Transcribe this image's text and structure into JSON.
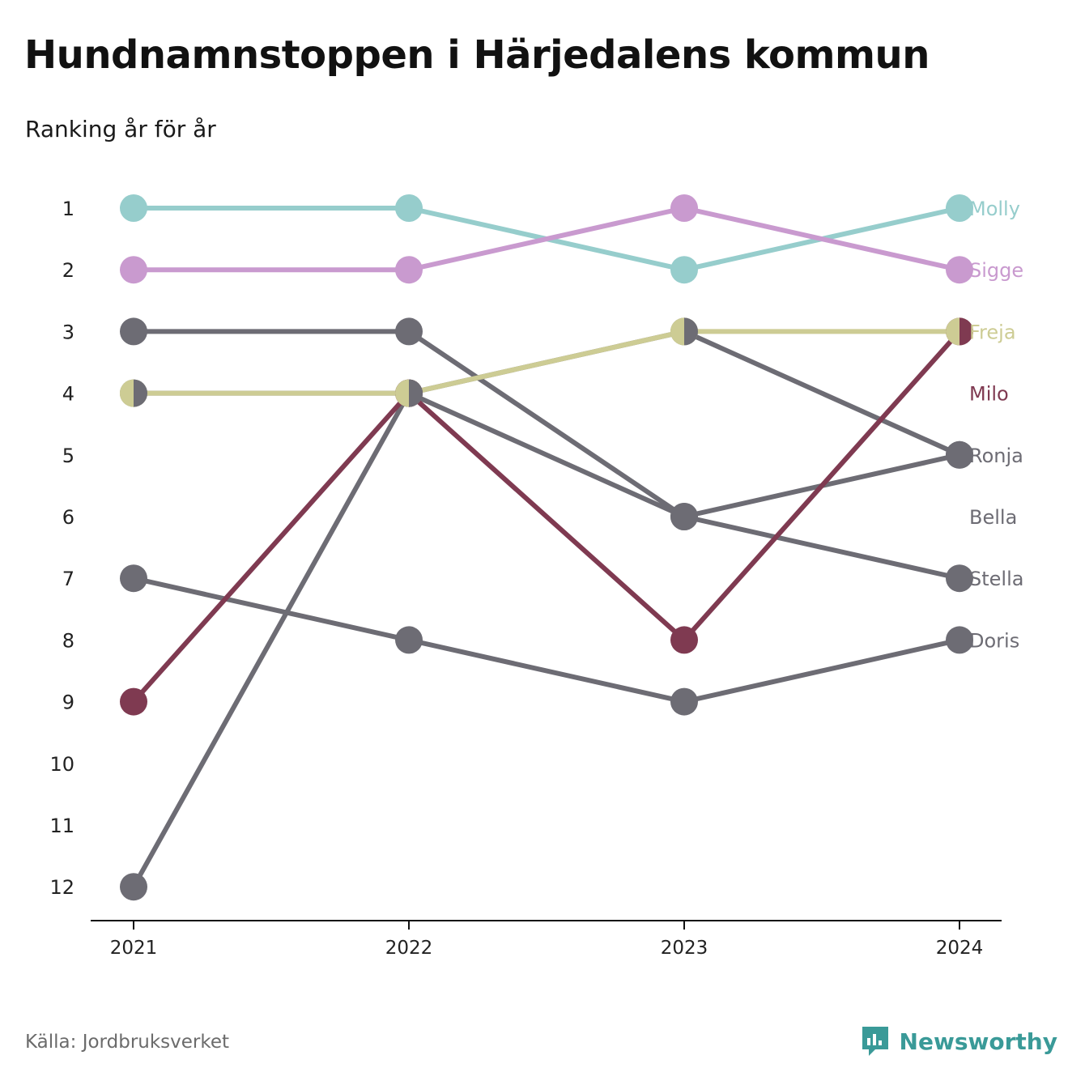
{
  "title": "Hundnamnstoppen i Härjedalens kommun",
  "subtitle": "Ranking år för år",
  "source": "Källa: Jordbruksverket",
  "brand": {
    "name": "Newsworthy",
    "icon": "newsworthy-logo-icon",
    "color": "#3a9a98"
  },
  "colors": {
    "molly": "#96cdcc",
    "sigge": "#c99acf",
    "freja": "#cdcc94",
    "milo": "#7f3a51",
    "grey": "#6d6c74",
    "axis": "#111111"
  },
  "chart_data": {
    "type": "line",
    "chart_kind": "bump",
    "x": [
      "2021",
      "2022",
      "2023",
      "2024"
    ],
    "y_axis": {
      "reversed": true,
      "range": [
        1,
        12
      ],
      "ticks": [
        "1",
        "2",
        "3",
        "4",
        "5",
        "6",
        "7",
        "8",
        "9",
        "10",
        "11",
        "12"
      ]
    },
    "grid": false,
    "legend": "direct-labels-right",
    "series": [
      {
        "name": "Molly",
        "color": "#96cdcc",
        "values": [
          1,
          1,
          2,
          1
        ]
      },
      {
        "name": "Sigge",
        "color": "#c99acf",
        "values": [
          2,
          2,
          1,
          2
        ]
      },
      {
        "name": "Freja",
        "color": "#cdcc94",
        "values": [
          4,
          4,
          3,
          3
        ]
      },
      {
        "name": "Milo",
        "color": "#7f3a51",
        "values": [
          9,
          4,
          8,
          3
        ]
      },
      {
        "name": "Ronja",
        "color": "#6d6c74",
        "values": [
          12,
          4,
          6,
          5
        ]
      },
      {
        "name": "Bella",
        "color": "#6d6c74",
        "values": [
          3,
          3,
          6,
          7
        ]
      },
      {
        "name": "Stella",
        "color": "#6d6c74",
        "values": [
          4,
          4,
          3,
          5
        ]
      },
      {
        "name": "Doris",
        "color": "#6d6c74",
        "values": [
          7,
          8,
          9,
          8
        ]
      }
    ],
    "right_labels": [
      {
        "text": "Molly",
        "rank": 1,
        "color": "#96cdcc"
      },
      {
        "text": "Sigge",
        "rank": 2,
        "color": "#c99acf"
      },
      {
        "text": "Freja",
        "rank": 3,
        "color": "#cdcc94"
      },
      {
        "text": "Milo",
        "rank": 4,
        "color": "#7f3a51"
      },
      {
        "text": "Ronja",
        "rank": 5,
        "color": "#6d6c74"
      },
      {
        "text": "Bella",
        "rank": 6,
        "color": "#6d6c74"
      },
      {
        "text": "Stella",
        "rank": 7,
        "color": "#6d6c74"
      },
      {
        "text": "Doris",
        "rank": 8,
        "color": "#6d6c74"
      }
    ]
  }
}
